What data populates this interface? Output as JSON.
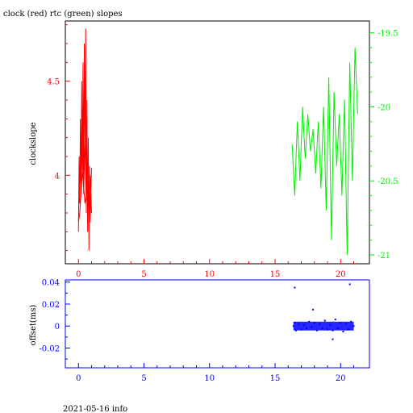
{
  "title": "clock (red) rtc (green) slopes",
  "footer": "2021-05-16 info",
  "colors": {
    "clock": "#ff0000",
    "rtc": "#00ee00",
    "offset": "#0000ff",
    "frame": "#000000"
  },
  "chart_data": [
    {
      "type": "line",
      "title": "clock (red) rtc (green) slopes",
      "ylabel": "clockslope",
      "xlim": [
        -1,
        22.2
      ],
      "x_ticks": [
        0,
        5,
        10,
        15,
        20
      ],
      "x_tick_labels": [
        "0",
        "5",
        "10",
        "15",
        "20"
      ],
      "y_left": {
        "lim": [
          3.53,
          4.82
        ],
        "ticks": [
          4,
          4.5
        ],
        "tick_labels": [
          "4",
          "4.5"
        ]
      },
      "y_right": {
        "lim": [
          -21.06,
          -19.42
        ],
        "ticks": [
          -21,
          -20.5,
          -20,
          -19.5
        ],
        "tick_labels": [
          "-21",
          "-20.5",
          "-20",
          "-19.5"
        ]
      },
      "series": [
        {
          "name": "clock",
          "axis": "left",
          "x": [
            0.0,
            0.05,
            0.1,
            0.15,
            0.2,
            0.25,
            0.3,
            0.35,
            0.4,
            0.45,
            0.5,
            0.55,
            0.6,
            0.65,
            0.7,
            0.75,
            0.8,
            0.85,
            0.9,
            0.95,
            1.0,
            0.9,
            0.8,
            0.7,
            0.6,
            0.5,
            0.4,
            0.3,
            0.2,
            0.1,
            0.0,
            0.1,
            0.3,
            0.5,
            0.7,
            0.9,
            1.0
          ],
          "y": [
            3.7,
            4.1,
            3.85,
            4.3,
            3.9,
            4.5,
            4.0,
            4.6,
            3.95,
            4.7,
            4.1,
            4.78,
            3.8,
            4.4,
            3.7,
            4.2,
            3.6,
            4.05,
            3.75,
            3.9,
            3.8,
            4.0,
            3.78,
            4.05,
            3.85,
            4.2,
            3.9,
            4.35,
            3.95,
            4.05,
            3.75,
            3.8,
            4.02,
            3.85,
            3.95,
            3.8,
            4.04
          ]
        },
        {
          "name": "rtc",
          "axis": "right",
          "x": [
            16.3,
            16.5,
            16.7,
            16.9,
            17.1,
            17.3,
            17.5,
            17.7,
            17.9,
            18.1,
            18.3,
            18.5,
            18.7,
            18.9,
            19.1,
            19.3,
            19.5,
            19.7,
            19.9,
            20.1,
            20.3,
            20.5,
            20.7,
            20.9,
            21.1,
            21.3
          ],
          "y": [
            -20.25,
            -20.6,
            -20.1,
            -20.5,
            -20.0,
            -20.35,
            -20.05,
            -20.3,
            -20.15,
            -20.45,
            -20.1,
            -20.55,
            -20.0,
            -20.7,
            -19.8,
            -20.9,
            -19.9,
            -20.4,
            -20.05,
            -20.6,
            -19.95,
            -21.0,
            -19.7,
            -20.5,
            -19.6,
            -20.05
          ]
        }
      ]
    },
    {
      "type": "scatter",
      "ylabel": "offset(ms)",
      "xlim": [
        -1,
        22.2
      ],
      "ylim": [
        -0.038,
        0.042
      ],
      "x_ticks": [
        0,
        5,
        10,
        15,
        20
      ],
      "x_tick_labels": [
        "0",
        "5",
        "10",
        "15",
        "20"
      ],
      "y_ticks": [
        -0.02,
        0,
        0.02,
        0.04
      ],
      "y_tick_labels": [
        "-0.02",
        "0",
        "0.02",
        "0.04"
      ],
      "series": [
        {
          "name": "offset",
          "x": [
            16.4,
            16.5,
            16.6,
            16.8,
            17.0,
            17.2,
            17.4,
            17.6,
            17.8,
            18.0,
            18.2,
            18.4,
            18.6,
            18.8,
            19.0,
            19.2,
            19.4,
            19.6,
            19.8,
            20.0,
            20.2,
            20.4,
            20.6,
            20.8,
            21.0,
            16.5,
            17.9,
            19.4,
            20.7
          ],
          "y": [
            0.0,
            0.003,
            -0.004,
            0.002,
            -0.003,
            0.001,
            -0.002,
            0.004,
            -0.001,
            0.003,
            -0.004,
            0.002,
            -0.002,
            0.005,
            -0.003,
            0.001,
            -0.004,
            0.006,
            -0.002,
            0.003,
            -0.005,
            0.002,
            -0.003,
            0.004,
            0.0,
            0.035,
            0.015,
            -0.012,
            0.038
          ]
        }
      ]
    }
  ]
}
